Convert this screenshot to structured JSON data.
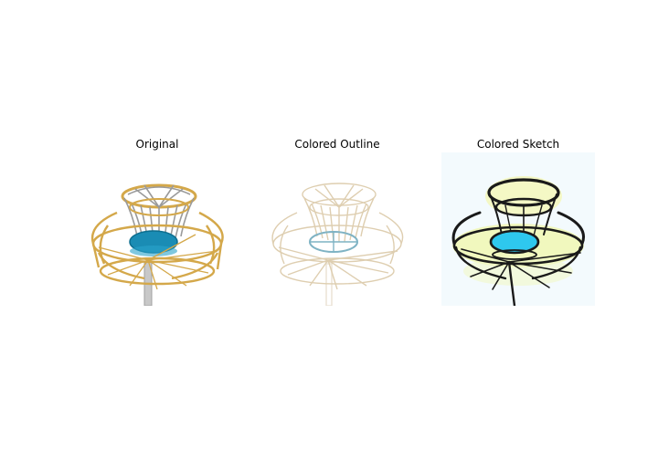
{
  "figure": {
    "panels": [
      {
        "title": "Original"
      },
      {
        "title": "Colored Outline"
      },
      {
        "title": "Colored Sketch"
      }
    ]
  },
  "colors": {
    "chain_silver": "#9a9a9a",
    "frame_gold": "#d4a84a",
    "basket_blue": "#1a8cb4",
    "pole_grey": "#b8b8b8",
    "outline_beige": "#d9c6a3",
    "sketch_dark": "#1a1a1a",
    "sketch_yellow": "#eef58a",
    "sketch_cyan": "#2ec8ee"
  }
}
